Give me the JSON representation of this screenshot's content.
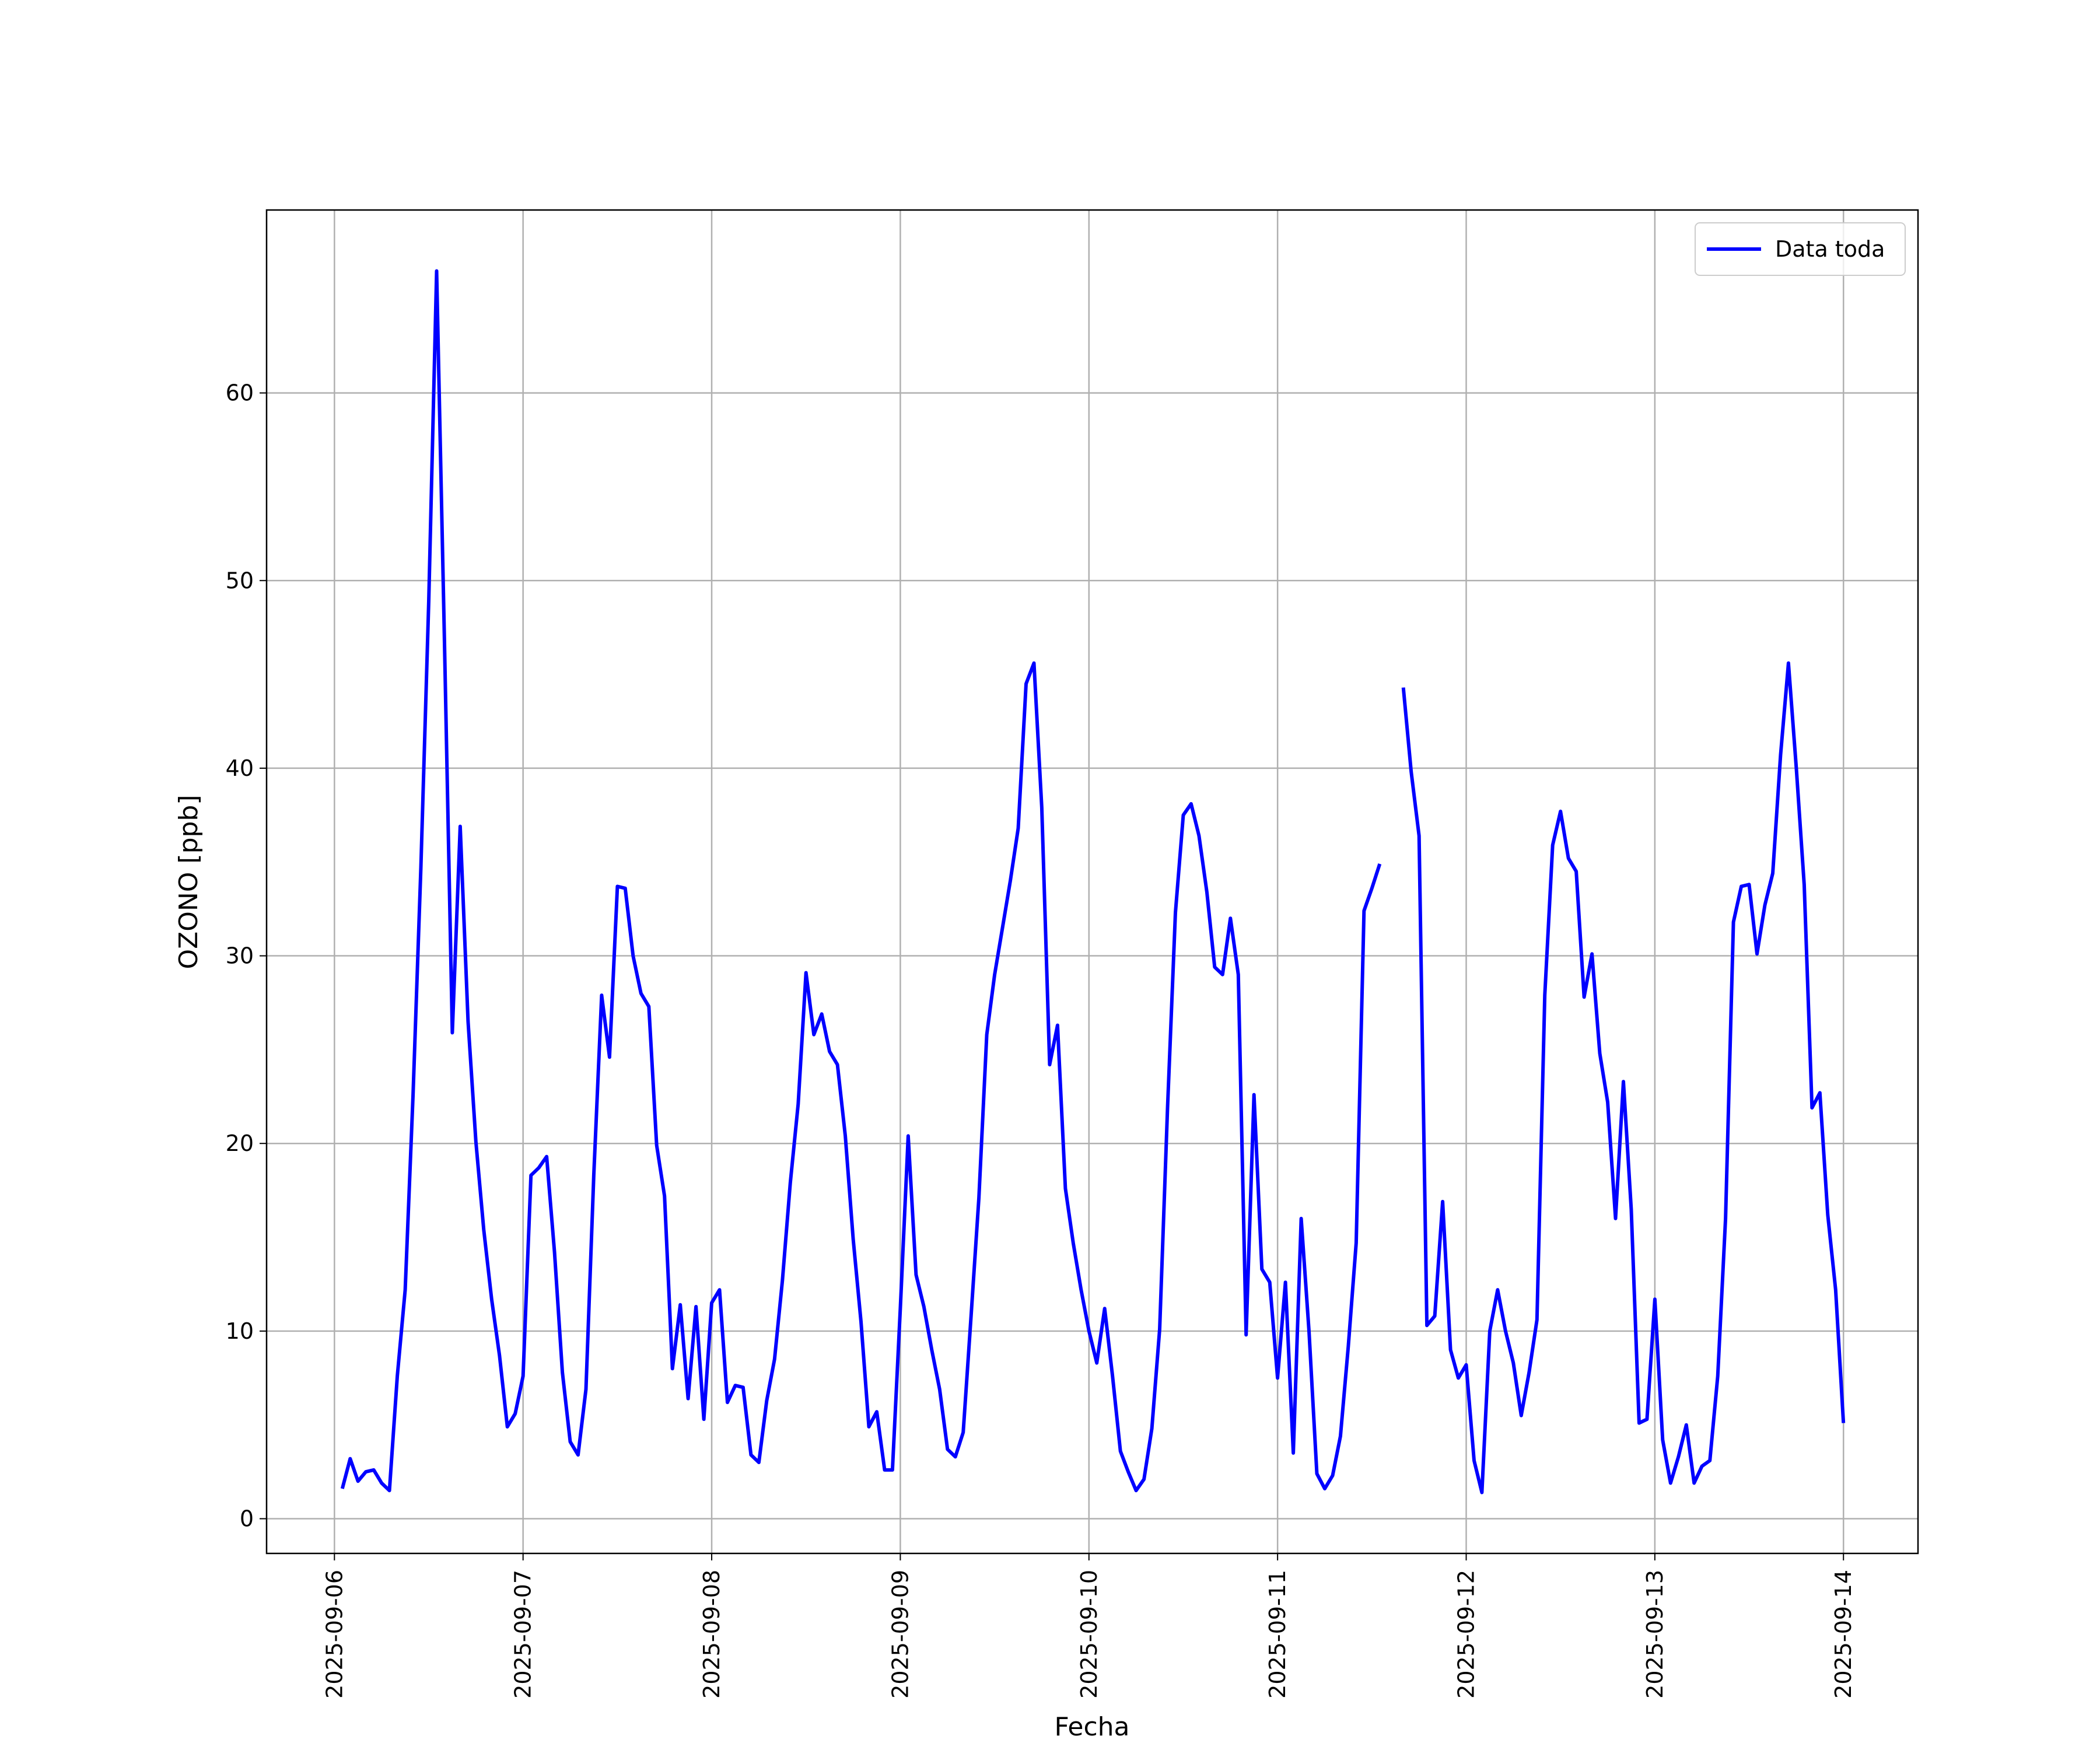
{
  "chart_data": {
    "type": "line",
    "x_label": "Fecha",
    "y_label": "OZONO [ppb]",
    "xlim": [
      "2025-09-05 15:22",
      "2025-09-14 09:29"
    ],
    "xticks": [
      "2025-09-06",
      "2025-09-07",
      "2025-09-08",
      "2025-09-09",
      "2025-09-10",
      "2025-09-11",
      "2025-09-12",
      "2025-09-13",
      "2025-09-14"
    ],
    "ylim": [
      -1.85,
      69.75
    ],
    "yticks": [
      0,
      10,
      20,
      30,
      40,
      50,
      60
    ],
    "grid": true,
    "legend": "upper right",
    "x": [
      "2025-09-06 01:00",
      "2025-09-06 02:00",
      "2025-09-06 03:00",
      "2025-09-06 04:00",
      "2025-09-06 05:00",
      "2025-09-06 06:00",
      "2025-09-06 07:00",
      "2025-09-06 08:00",
      "2025-09-06 09:00",
      "2025-09-06 10:00",
      "2025-09-06 11:00",
      "2025-09-06 12:00",
      "2025-09-06 13:00",
      "2025-09-06 14:00",
      "2025-09-06 15:00",
      "2025-09-06 16:00",
      "2025-09-06 17:00",
      "2025-09-06 18:00",
      "2025-09-06 19:00",
      "2025-09-06 20:00",
      "2025-09-06 21:00",
      "2025-09-06 22:00",
      "2025-09-06 23:00",
      "2025-09-07 00:00",
      "2025-09-07 01:00",
      "2025-09-07 02:00",
      "2025-09-07 03:00",
      "2025-09-07 04:00",
      "2025-09-07 05:00",
      "2025-09-07 06:00",
      "2025-09-07 07:00",
      "2025-09-07 08:00",
      "2025-09-07 09:00",
      "2025-09-07 10:00",
      "2025-09-07 11:00",
      "2025-09-07 12:00",
      "2025-09-07 13:00",
      "2025-09-07 14:00",
      "2025-09-07 15:00",
      "2025-09-07 16:00",
      "2025-09-07 17:00",
      "2025-09-07 18:00",
      "2025-09-07 19:00",
      "2025-09-07 20:00",
      "2025-09-07 21:00",
      "2025-09-07 22:00",
      "2025-09-07 23:00",
      "2025-09-08 00:00",
      "2025-09-08 01:00",
      "2025-09-08 02:00",
      "2025-09-08 03:00",
      "2025-09-08 04:00",
      "2025-09-08 05:00",
      "2025-09-08 06:00",
      "2025-09-08 07:00",
      "2025-09-08 08:00",
      "2025-09-08 09:00",
      "2025-09-08 10:00",
      "2025-09-08 11:00",
      "2025-09-08 12:00",
      "2025-09-08 13:00",
      "2025-09-08 14:00",
      "2025-09-08 15:00",
      "2025-09-08 16:00",
      "2025-09-08 17:00",
      "2025-09-08 18:00",
      "2025-09-08 19:00",
      "2025-09-08 20:00",
      "2025-09-08 21:00",
      "2025-09-08 22:00",
      "2025-09-08 23:00",
      "2025-09-09 00:00",
      "2025-09-09 01:00",
      "2025-09-09 02:00",
      "2025-09-09 03:00",
      "2025-09-09 04:00",
      "2025-09-09 05:00",
      "2025-09-09 06:00",
      "2025-09-09 07:00",
      "2025-09-09 08:00",
      "2025-09-09 09:00",
      "2025-09-09 10:00",
      "2025-09-09 11:00",
      "2025-09-09 12:00",
      "2025-09-09 13:00",
      "2025-09-09 14:00",
      "2025-09-09 15:00",
      "2025-09-09 16:00",
      "2025-09-09 17:00",
      "2025-09-09 18:00",
      "2025-09-09 19:00",
      "2025-09-09 20:00",
      "2025-09-09 21:00",
      "2025-09-09 22:00",
      "2025-09-09 23:00",
      "2025-09-10 00:00",
      "2025-09-10 01:00",
      "2025-09-10 02:00",
      "2025-09-10 03:00",
      "2025-09-10 04:00",
      "2025-09-10 05:00",
      "2025-09-10 06:00",
      "2025-09-10 07:00",
      "2025-09-10 08:00",
      "2025-09-10 09:00",
      "2025-09-10 10:00",
      "2025-09-10 11:00",
      "2025-09-10 12:00",
      "2025-09-10 13:00",
      "2025-09-10 14:00",
      "2025-09-10 15:00",
      "2025-09-10 16:00",
      "2025-09-10 17:00",
      "2025-09-10 18:00",
      "2025-09-10 19:00",
      "2025-09-10 20:00",
      "2025-09-10 21:00",
      "2025-09-10 22:00",
      "2025-09-10 23:00",
      "2025-09-11 00:00",
      "2025-09-11 01:00",
      "2025-09-11 02:00",
      "2025-09-11 03:00",
      "2025-09-11 04:00",
      "2025-09-11 05:00",
      "2025-09-11 06:00",
      "2025-09-11 07:00",
      "2025-09-11 08:00",
      "2025-09-11 09:00",
      "2025-09-11 10:00",
      "2025-09-11 11:00",
      "2025-09-11 12:00",
      "2025-09-11 13:00",
      "2025-09-11 14:00",
      "2025-09-11 15:00",
      "2025-09-11 16:00",
      "2025-09-11 17:00",
      "2025-09-11 18:00",
      "2025-09-11 19:00",
      "2025-09-11 20:00",
      "2025-09-11 21:00",
      "2025-09-11 22:00",
      "2025-09-11 23:00",
      "2025-09-12 00:00",
      "2025-09-12 01:00",
      "2025-09-12 02:00",
      "2025-09-12 03:00",
      "2025-09-12 04:00",
      "2025-09-12 05:00",
      "2025-09-12 06:00",
      "2025-09-12 07:00",
      "2025-09-12 08:00",
      "2025-09-12 09:00",
      "2025-09-12 10:00",
      "2025-09-12 11:00",
      "2025-09-12 12:00",
      "2025-09-12 13:00",
      "2025-09-12 14:00",
      "2025-09-12 15:00",
      "2025-09-12 16:00",
      "2025-09-12 17:00",
      "2025-09-12 18:00",
      "2025-09-12 19:00",
      "2025-09-12 20:00",
      "2025-09-12 21:00",
      "2025-09-12 22:00",
      "2025-09-12 23:00",
      "2025-09-13 00:00",
      "2025-09-13 01:00",
      "2025-09-13 02:00",
      "2025-09-13 03:00",
      "2025-09-13 04:00",
      "2025-09-13 05:00",
      "2025-09-13 06:00",
      "2025-09-13 07:00",
      "2025-09-13 08:00",
      "2025-09-13 09:00",
      "2025-09-13 10:00",
      "2025-09-13 11:00",
      "2025-09-13 12:00",
      "2025-09-13 13:00",
      "2025-09-13 14:00",
      "2025-09-13 15:00",
      "2025-09-13 16:00",
      "2025-09-13 17:00",
      "2025-09-13 18:00",
      "2025-09-13 19:00",
      "2025-09-13 20:00",
      "2025-09-13 21:00",
      "2025-09-13 22:00",
      "2025-09-13 23:00",
      "2025-09-14 00:00"
    ],
    "series": [
      {
        "name": "Data toda",
        "color": "#0000ff",
        "values": [
          1.6,
          3.2,
          2.0,
          2.5,
          2.6,
          1.9,
          1.5,
          7.6,
          12.2,
          22.6,
          34.7,
          48.9,
          66.5,
          46.8,
          25.9,
          36.9,
          26.5,
          20.1,
          15.4,
          11.7,
          8.7,
          4.9,
          5.6,
          7.6,
          18.3,
          18.7,
          19.3,
          14.2,
          7.8,
          4.1,
          3.4,
          6.9,
          18.3,
          27.9,
          24.6,
          33.7,
          33.6,
          30.0,
          28.0,
          27.3,
          19.9,
          17.2,
          8.0,
          11.4,
          6.4,
          11.3,
          5.3,
          11.5,
          12.2,
          6.2,
          7.1,
          7.0,
          3.4,
          3.0,
          6.3,
          8.5,
          12.7,
          17.9,
          22.1,
          29.1,
          25.8,
          26.9,
          24.9,
          24.2,
          20.4,
          14.9,
          10.5,
          4.9,
          5.7,
          2.6,
          2.6,
          11.2,
          20.4,
          13.0,
          11.3,
          9.0,
          6.9,
          3.7,
          3.3,
          4.6,
          10.8,
          17.1,
          25.8,
          29.0,
          31.5,
          34.0,
          36.8,
          44.5,
          45.6,
          37.9,
          24.2,
          26.3,
          17.6,
          14.7,
          12.2,
          10.0,
          8.3,
          11.2,
          7.6,
          3.6,
          2.5,
          1.5,
          2.1,
          4.8,
          10.1,
          21.9,
          32.3,
          37.5,
          38.1,
          36.4,
          33.4,
          29.4,
          29.0,
          32.0,
          29.0,
          9.8,
          22.6,
          13.3,
          12.6,
          7.5,
          12.6,
          3.5,
          16.0,
          10.0,
          2.4,
          1.6,
          2.3,
          4.4,
          9.2,
          14.7,
          32.4,
          33.6,
          34.9,
          null,
          null,
          44.3,
          39.8,
          36.4,
          10.3,
          10.8,
          16.9,
          9.0,
          7.5,
          8.2,
          3.1,
          1.4,
          10.0,
          12.2,
          10.0,
          8.3,
          5.5,
          7.8,
          10.6,
          27.9,
          35.9,
          37.7,
          35.2,
          34.5,
          27.8,
          30.1,
          24.8,
          22.2,
          16.0,
          23.3,
          16.5,
          5.1,
          5.3,
          11.7,
          4.2,
          1.9,
          3.3,
          5.0,
          1.9,
          2.8,
          3.1,
          7.6,
          16.0,
          31.8,
          33.7,
          33.8,
          30.1,
          32.7,
          34.4,
          40.7,
          45.6,
          40.0,
          33.8,
          21.9,
          22.7,
          16.2,
          12.2,
          5.1
        ]
      }
    ]
  }
}
